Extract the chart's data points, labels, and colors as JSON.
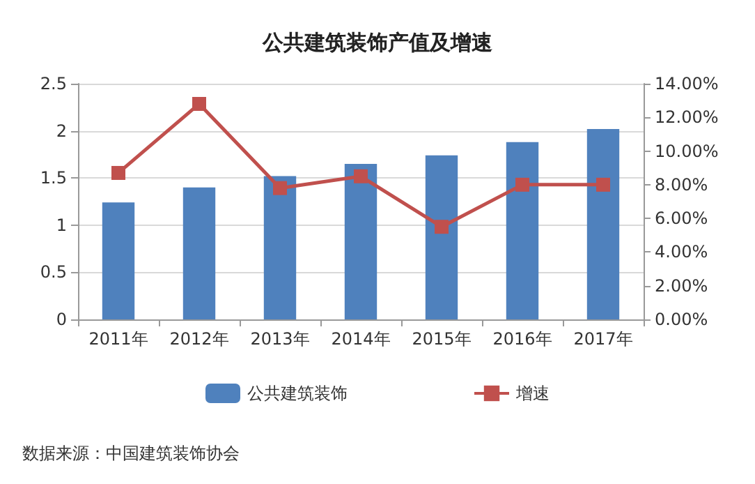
{
  "chart_data": {
    "type": "bar",
    "title": "公共建筑装饰产值及增速",
    "categories": [
      "2011年",
      "2012年",
      "2013年",
      "2014年",
      "2015年",
      "2016年",
      "2017年"
    ],
    "series": [
      {
        "name": "公共建筑装饰",
        "color": "#4f81bd",
        "values": [
          1.24,
          1.4,
          1.52,
          1.65,
          1.74,
          1.88,
          2.02
        ]
      },
      {
        "name": "增速",
        "type": "line",
        "axis": "y2",
        "color": "#c0504d",
        "marker": "square",
        "values": [
          8.7,
          12.8,
          7.8,
          8.5,
          5.5,
          8.0,
          8.0
        ]
      }
    ],
    "ylim": [
      0,
      2.5
    ],
    "yticks": [
      0,
      0.5,
      1,
      1.5,
      2,
      2.5
    ],
    "y2lim": [
      0,
      14
    ],
    "y2ticks": [
      {
        "value": 0,
        "label": "0.00%"
      },
      {
        "value": 2,
        "label": "2.00%"
      },
      {
        "value": 4,
        "label": "4.00%"
      },
      {
        "value": 6,
        "label": "6.00%"
      },
      {
        "value": 8,
        "label": "8.00%"
      },
      {
        "value": 10,
        "label": "10.00%"
      },
      {
        "value": 12,
        "label": "12.00%"
      },
      {
        "value": 14,
        "label": "14.00%"
      }
    ],
    "grid": "y",
    "legend": "bottom",
    "annotations": [
      "数据来源：中国建筑装饰协会"
    ]
  }
}
